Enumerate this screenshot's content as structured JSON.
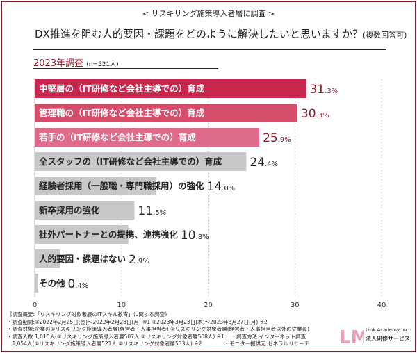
{
  "header": {
    "subtitle": "< リスキリング施策導入者層に調査 >",
    "title": "DX推進を阻む人的要因・課題をどのように解決したいと思いますか？",
    "title_note": "(複数回答可)",
    "survey_label": "2023年調査",
    "survey_n": "(n=521人)"
  },
  "chart_data": {
    "type": "bar",
    "orientation": "horizontal",
    "categories": [
      "中堅層の（IT研修など会社主導での）育成",
      "管理職の（IT研修など会社主導での）育成",
      "若手の（IT研修など会社主導での）育成",
      "全スタッフの（IT研修など会社主導での）育成",
      "経験者採用（一般職・専門職採用）の強化",
      "新卒採用の強化",
      "社外パートナーとの提携、連携強化",
      "人的要因・課題はない",
      "その他"
    ],
    "values": [
      31.3,
      30.3,
      25.9,
      24.4,
      14.0,
      11.5,
      10.8,
      2.9,
      0.4
    ],
    "value_labels": [
      [
        "31",
        "3"
      ],
      [
        "30",
        "3"
      ],
      [
        "25",
        "9"
      ],
      [
        "24",
        "4"
      ],
      [
        "14",
        "0"
      ],
      [
        "11",
        "5"
      ],
      [
        "10",
        "8"
      ],
      [
        "2",
        "9"
      ],
      [
        "0",
        "4"
      ]
    ],
    "unit": "%",
    "xlim": [
      0,
      40
    ],
    "xticks": [
      "0",
      "10",
      "20",
      "30",
      "40"
    ],
    "grid": true,
    "colors": [
      "#c5284c",
      "#d44e6c",
      "#de6c8a",
      "#c8c8c8",
      "#c8c8c8",
      "#c8c8c8",
      "#c8c8c8",
      "#c8c8c8",
      "#c8c8c8"
    ],
    "label_colors": [
      "#ffffff",
      "#ffffff",
      "#ffffff",
      "#222222",
      "#222222",
      "#222222",
      "#222222",
      "#222222",
      "#222222"
    ],
    "value_colors": [
      "#8a1a2a",
      "#8a1a2a",
      "#8a1a2a",
      "#222222",
      "#222222",
      "#222222",
      "#222222",
      "#222222",
      "#222222"
    ]
  },
  "notes": [
    "《調査概要:「リスキリング対象者層のITスキル教育」に関する調査》",
    "・調査期間:①2022年2月25日(金)～2022年2月28日(月) ※1 ②2023年3月23日(木)～2023年3月27日(月) ※2",
    "・調査対象:企業の①リスキリング施策導入者層(経営者・人事担当者) ②リスキリング対象者層(経営者・人事担当者以外の従業員)",
    "・調査人数:1,015人(①リスキリング施策導入者層507人 ②リスキリング対象者層508人) ※1　 ・調査方法:インターネット調査",
    "　1,054人(①リスキリング施策導入者層521人 ②リスキリング対象者層533人) ※2　　　　 ・モニター提供元:ゼネラルリサーチ"
  ],
  "logo": {
    "mark": "LM",
    "company": "Link Academy Inc.",
    "service": "法人研修サービス"
  }
}
